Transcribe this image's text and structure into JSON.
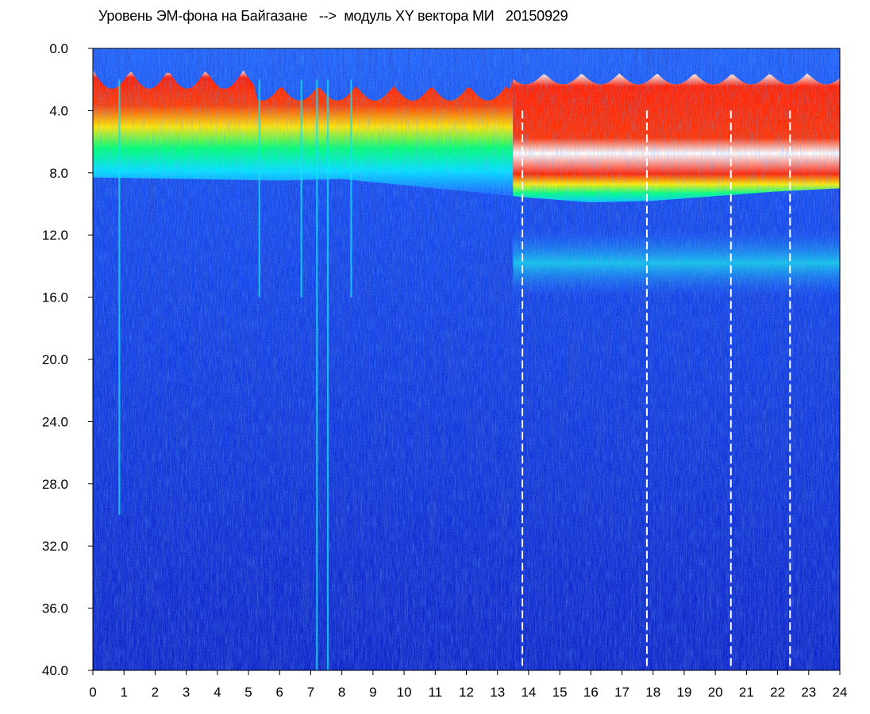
{
  "chart_data": {
    "type": "heatmap",
    "title": "Уровень ЭМ-фона на Байгазане   -->  модуль XY вектора МИ   20150929",
    "x_ticks": [
      "0",
      "1",
      "2",
      "3",
      "4",
      "5",
      "6",
      "7",
      "8",
      "9",
      "10",
      "11",
      "12",
      "13",
      "14",
      "15",
      "16",
      "17",
      "18",
      "19",
      "20",
      "21",
      "22",
      "23",
      "24"
    ],
    "y_ticks": [
      "0.0",
      "4.0",
      "8.0",
      "12.0",
      "16.0",
      "20.0",
      "24.0",
      "28.0",
      "32.0",
      "36.0",
      "40.0"
    ],
    "xlim": [
      0,
      24
    ],
    "ylim": [
      0,
      40
    ],
    "y_inverted": true,
    "grid": false,
    "colorscale": [
      "#0a1ec0",
      "#1450ff",
      "#00d8ff",
      "#00ff80",
      "#ffff00",
      "#ff2000",
      "#ffffff"
    ],
    "upper_band_edge": [
      [
        0,
        8.3
      ],
      [
        3,
        8.4
      ],
      [
        6,
        8.5
      ],
      [
        8,
        8.4
      ],
      [
        10,
        8.8
      ],
      [
        12,
        9.2
      ],
      [
        14,
        9.6
      ],
      [
        16,
        9.9
      ],
      [
        18,
        9.8
      ],
      [
        20,
        9.5
      ],
      [
        22,
        9.2
      ],
      [
        24,
        9.0
      ]
    ],
    "secondary_band": {
      "center": 13.8,
      "x_start": 13.5,
      "x_end": 24
    },
    "disturbance_bursts_x": [
      0.85,
      5.35,
      6.7,
      7.2,
      7.55,
      8.3
    ],
    "dashed_markers_x": [
      13.8,
      17.8,
      20.5,
      22.4
    ]
  }
}
